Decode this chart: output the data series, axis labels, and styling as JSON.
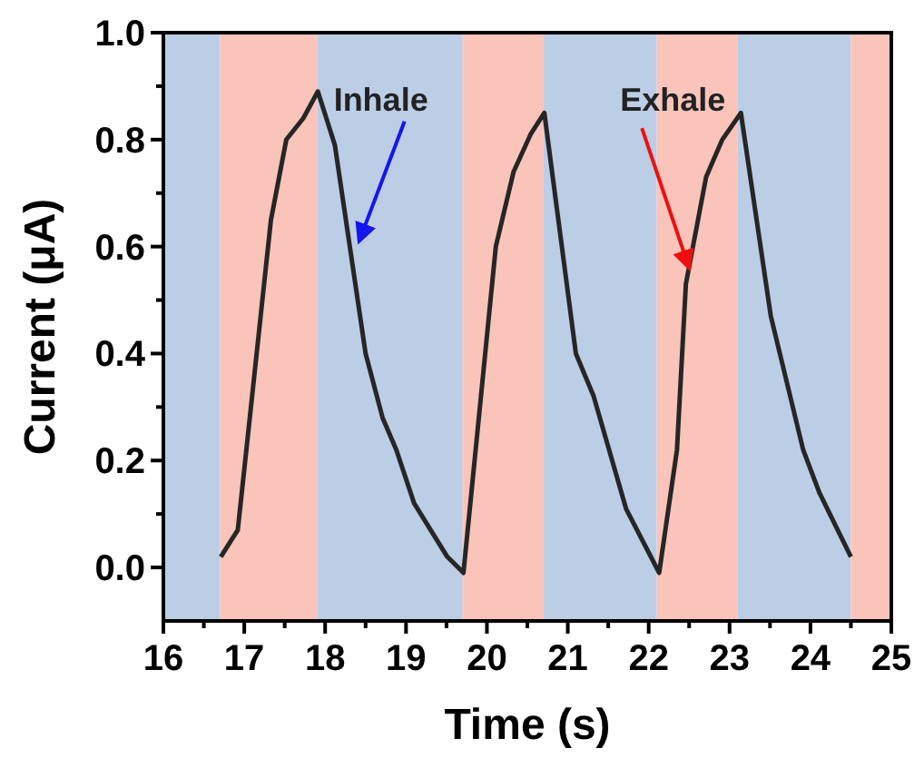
{
  "chart_data": {
    "type": "line",
    "xlabel": "Time (s)",
    "ylabel": "Current (μA)",
    "xlim": [
      16,
      25
    ],
    "ylim": [
      -0.1,
      1.0
    ],
    "xticks": [
      16,
      {
        "value": 16.5,
        "label": null
      },
      17,
      {
        "value": 17.5,
        "label": null
      },
      18,
      {
        "value": 18.5,
        "label": null
      },
      19,
      {
        "value": 19.5,
        "label": null
      },
      20,
      {
        "value": 20.5,
        "label": null
      },
      21,
      {
        "value": 21.5,
        "label": null
      },
      22,
      {
        "value": 22.5,
        "label": null
      },
      23,
      {
        "value": 23.5,
        "label": null
      },
      24,
      {
        "value": 24.5,
        "label": null
      },
      25
    ],
    "yticks": [
      {
        "value": 0.0,
        "label": "0.0"
      },
      {
        "value": 0.1,
        "label": null
      },
      0.2,
      {
        "value": 0.3,
        "label": null
      },
      0.4,
      {
        "value": 0.5,
        "label": null
      },
      0.6,
      {
        "value": 0.7,
        "label": null
      },
      0.8,
      {
        "value": 0.9,
        "label": null
      },
      {
        "value": 1.0,
        "label": "1.0"
      }
    ],
    "grid": false,
    "marker": "none",
    "line_style": "solid",
    "series": [
      {
        "color": "#262626",
        "x": [
          16.71,
          16.92,
          17.33,
          17.52,
          17.73,
          17.91,
          18.12,
          18.5,
          18.71,
          18.88,
          19.1,
          19.51,
          19.71,
          20.11,
          20.33,
          20.54,
          20.71,
          21.1,
          21.32,
          21.72,
          22.13,
          22.35,
          22.46,
          22.71,
          22.91,
          23.14,
          23.51,
          23.91,
          24.11,
          24.5
        ],
        "values": [
          0.02,
          0.07,
          0.65,
          0.8,
          0.84,
          0.89,
          0.79,
          0.4,
          0.28,
          0.22,
          0.12,
          0.02,
          -0.01,
          0.6,
          0.74,
          0.81,
          0.85,
          0.4,
          0.32,
          0.11,
          -0.01,
          0.22,
          0.53,
          0.73,
          0.8,
          0.85,
          0.47,
          0.22,
          0.14,
          0.02
        ]
      }
    ],
    "bands": [
      {
        "axis": "x",
        "from": 16,
        "to": 16.7,
        "color": "#bccde6"
      },
      {
        "axis": "x",
        "from": 16.7,
        "to": 17.9,
        "color": "#fac4bb"
      },
      {
        "axis": "x",
        "from": 17.9,
        "to": 19.7,
        "color": "#bccde6"
      },
      {
        "axis": "x",
        "from": 19.7,
        "to": 20.7,
        "color": "#fac4bb"
      },
      {
        "axis": "x",
        "from": 20.7,
        "to": 22.1,
        "color": "#bccde6"
      },
      {
        "axis": "x",
        "from": 22.1,
        "to": 23.1,
        "color": "#fac4bb"
      },
      {
        "axis": "x",
        "from": 23.1,
        "to": 24.5,
        "color": "#bccde6"
      },
      {
        "axis": "x",
        "from": 24.5,
        "to": 25,
        "color": "#fac4bb"
      }
    ],
    "annotations": [
      {
        "text": "Inhale",
        "x": 18.42,
        "y": 0.61
      },
      {
        "text": "Exhale",
        "x": 22.5,
        "y": 0.56
      }
    ]
  }
}
